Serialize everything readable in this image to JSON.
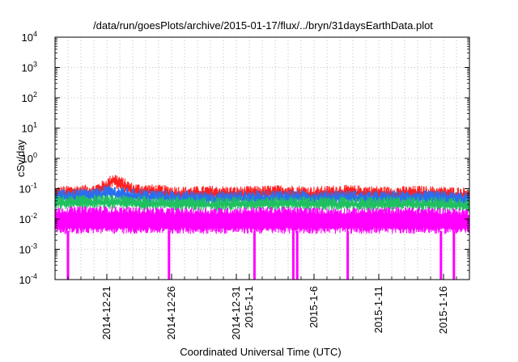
{
  "chart_data": {
    "type": "line",
    "title": "/data/run/goesPlots/archive/2015-01-17/flux/../bryn/31daysEarthData.plot",
    "xlabel": "Coordinated Universal Time (UTC)",
    "ylabel": "cSv/day",
    "yscale": "log",
    "ylim": [
      0.0001,
      10000
    ],
    "y_ticks": [
      {
        "value": 0.0001,
        "base": "10",
        "exp": "-4"
      },
      {
        "value": 0.001,
        "base": "10",
        "exp": "-3"
      },
      {
        "value": 0.01,
        "base": "10",
        "exp": "-2"
      },
      {
        "value": 0.1,
        "base": "10",
        "exp": "-1"
      },
      {
        "value": 1,
        "base": "10",
        "exp": "0"
      },
      {
        "value": 10,
        "base": "10",
        "exp": "1"
      },
      {
        "value": 100,
        "base": "10",
        "exp": "2"
      },
      {
        "value": 1000,
        "base": "10",
        "exp": "3"
      },
      {
        "value": 10000,
        "base": "10",
        "exp": "4"
      }
    ],
    "xlim": [
      "2014-12-17",
      "2015-01-18"
    ],
    "x_ticks": [
      "2014-12-21",
      "2014-12-26",
      "2014-12-31",
      "2015-1-1",
      "2015-1-6",
      "2015-1-11",
      "2015-1-16"
    ],
    "grid": true,
    "legend": "none",
    "series": [
      {
        "color": "#ff2020",
        "x": [
          "2014-12-17",
          "2014-12-19",
          "2014-12-20",
          "2014-12-21",
          "2014-12-21.5",
          "2014-12-22",
          "2014-12-23",
          "2014-12-25",
          "2014-12-27",
          "2014-12-29",
          "2014-12-31",
          "2015-01-02",
          "2015-01-04",
          "2015-01-06",
          "2015-01-08",
          "2015-01-10",
          "2015-01-12",
          "2015-01-14",
          "2015-01-16",
          "2015-01-18"
        ],
        "values": [
          0.07,
          0.08,
          0.08,
          0.13,
          0.2,
          0.16,
          0.09,
          0.08,
          0.07,
          0.075,
          0.07,
          0.075,
          0.08,
          0.07,
          0.08,
          0.075,
          0.07,
          0.075,
          0.07,
          0.065
        ]
      },
      {
        "color": "#2a6ef0",
        "x": [
          "2014-12-17",
          "2014-12-19",
          "2014-12-20",
          "2014-12-21",
          "2014-12-22",
          "2014-12-23",
          "2014-12-25",
          "2014-12-27",
          "2014-12-29",
          "2014-12-31",
          "2015-01-02",
          "2015-01-04",
          "2015-01-06",
          "2015-01-08",
          "2015-01-10",
          "2015-01-12",
          "2015-01-14",
          "2015-01-16",
          "2015-01-18"
        ],
        "values": [
          0.055,
          0.06,
          0.06,
          0.08,
          0.07,
          0.06,
          0.055,
          0.05,
          0.05,
          0.05,
          0.052,
          0.055,
          0.05,
          0.055,
          0.05,
          0.05,
          0.052,
          0.05,
          0.045
        ]
      },
      {
        "color": "#20c060",
        "x": [
          "2014-12-17",
          "2014-12-20",
          "2014-12-23",
          "2014-12-26",
          "2014-12-29",
          "2015-01-01",
          "2015-01-04",
          "2015-01-07",
          "2015-01-10",
          "2015-01-13",
          "2015-01-16",
          "2015-01-18"
        ],
        "values": [
          0.035,
          0.038,
          0.036,
          0.033,
          0.032,
          0.033,
          0.034,
          0.033,
          0.032,
          0.033,
          0.032,
          0.03
        ]
      },
      {
        "color": "#ff00ff",
        "x": [
          "2014-12-17",
          "2014-12-20",
          "2014-12-23",
          "2014-12-26",
          "2014-12-29",
          "2015-01-01",
          "2015-01-04",
          "2015-01-07",
          "2015-01-10",
          "2015-01-13",
          "2015-01-16",
          "2015-01-18"
        ],
        "values": [
          0.015,
          0.016,
          0.015,
          0.014,
          0.014,
          0.015,
          0.015,
          0.014,
          0.014,
          0.015,
          0.014,
          0.013
        ],
        "lower_envelope": 0.004
      }
    ],
    "dropouts": [
      {
        "x": "2014-12-18",
        "value": 0.0001
      },
      {
        "x": "2014-12-25.8",
        "value": 0.0001
      },
      {
        "x": "2015-01-01.4",
        "value": 0.0001
      },
      {
        "x": "2015-01-04.4",
        "value": 0.0001
      },
      {
        "x": "2015-01-04.7",
        "value": 0.0001
      },
      {
        "x": "2015-01-08.6",
        "value": 0.0001
      },
      {
        "x": "2015-01-15.8",
        "value": 0.0001
      },
      {
        "x": "2015-01-16.8",
        "value": 0.0001
      }
    ]
  }
}
